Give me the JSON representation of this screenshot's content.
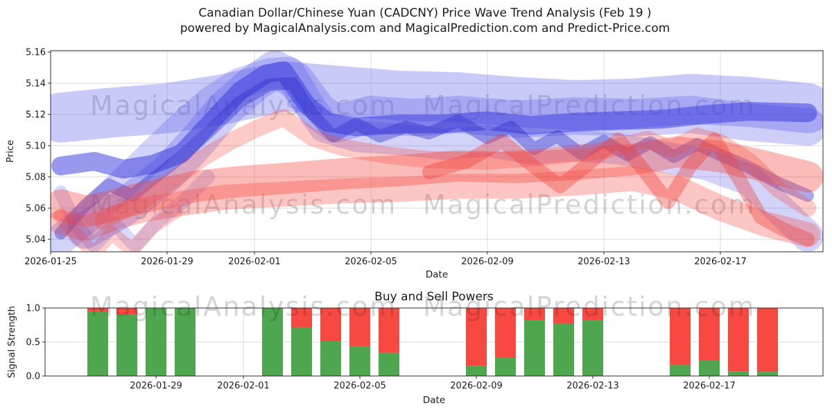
{
  "title": {
    "line1": "Canadian Dollar/Chinese Yuan (CADCNY) Price Wave Trend Analysis (Feb 19 )",
    "line2": "powered by MagicalAnalysis.com and MagicalPrediction.com and Predict-Price.com"
  },
  "watermarks": {
    "left_text": "MagicalAnalysis.com",
    "right_text": "MagicalPrediction.com",
    "color": "#8a8a8a",
    "opacity": 0.18
  },
  "colors": {
    "grid": "#d9d9d9",
    "spine": "#2b2b2b",
    "tick_text": "#262626",
    "buy_green": "#4ea64e",
    "sell_red": "#f74841",
    "wave_blue": "#5050e8",
    "wave_blue_dark": "#3434d0",
    "wave_red": "#f5433a"
  },
  "chart_data": [
    {
      "type": "area",
      "title": "",
      "xlabel": "Date",
      "ylabel": "Price",
      "ylim": [
        5.032,
        5.161
      ],
      "yticks": [
        "5.04",
        "5.06",
        "5.08",
        "5.10",
        "5.12",
        "5.14",
        "5.16"
      ],
      "xticks": [
        {
          "label": "2026-01-25",
          "day": 0
        },
        {
          "label": "2026-01-29",
          "day": 4
        },
        {
          "label": "2026-02-01",
          "day": 7
        },
        {
          "label": "2026-02-05",
          "day": 11
        },
        {
          "label": "2026-02-09",
          "day": 15
        },
        {
          "label": "2026-02-13",
          "day": 19
        },
        {
          "label": "2026-02-17",
          "day": 23
        }
      ],
      "grid": true,
      "legend": "none",
      "note": "overlapping translucent trend bands; points are [day_index_from_2026-01-25, price], width is band thickness in price units",
      "bands": [
        {
          "name": "blue-wide-upper",
          "color": "#5050e8",
          "opacity": 0.3,
          "width": 0.032,
          "points": [
            [
              0.35,
              5.118
            ],
            [
              2,
              5.121
            ],
            [
              4,
              5.124
            ],
            [
              6,
              5.13
            ],
            [
              8,
              5.138
            ],
            [
              10,
              5.135
            ],
            [
              12,
              5.132
            ],
            [
              14,
              5.131
            ],
            [
              16,
              5.128
            ],
            [
              18,
              5.126
            ],
            [
              20,
              5.127
            ],
            [
              22,
              5.13
            ],
            [
              24,
              5.128
            ],
            [
              26,
              5.124
            ]
          ]
        },
        {
          "name": "blue-peak-band",
          "color": "#5050e8",
          "opacity": 0.28,
          "width": 0.024,
          "points": [
            [
              1.2,
              5.046
            ],
            [
              2.5,
              5.06
            ],
            [
              4,
              5.082
            ],
            [
              5,
              5.102
            ],
            [
              6,
              5.124
            ],
            [
              7,
              5.14
            ],
            [
              7.7,
              5.149
            ],
            [
              8.4,
              5.142
            ],
            [
              9.2,
              5.122
            ],
            [
              9.8,
              5.114
            ],
            [
              11,
              5.12
            ],
            [
              12.5,
              5.118
            ],
            [
              14,
              5.12
            ],
            [
              16,
              5.117
            ],
            [
              18,
              5.119
            ],
            [
              20,
              5.118
            ],
            [
              22,
              5.12
            ],
            [
              24,
              5.115
            ],
            [
              26,
              5.112
            ]
          ]
        },
        {
          "name": "blue-early-peak-band",
          "color": "#5050e8",
          "opacity": 0.25,
          "width": 0.02,
          "points": [
            [
              0.35,
              5.04
            ],
            [
              1.5,
              5.058
            ],
            [
              3,
              5.085
            ],
            [
              4.5,
              5.112
            ],
            [
              5.5,
              5.128
            ],
            [
              6.5,
              5.14
            ],
            [
              7.5,
              5.146
            ],
            [
              8.2,
              5.147
            ],
            [
              8.8,
              5.128
            ],
            [
              9.4,
              5.112
            ],
            [
              10.5,
              5.106
            ],
            [
              12,
              5.104
            ],
            [
              13.5,
              5.101
            ],
            [
              15,
              5.103
            ],
            [
              16.5,
              5.098
            ],
            [
              18,
              5.1
            ],
            [
              19.5,
              5.098
            ],
            [
              21,
              5.093
            ],
            [
              22.5,
              5.088
            ],
            [
              24,
              5.078
            ],
            [
              25,
              5.06
            ],
            [
              26,
              5.042
            ]
          ]
        },
        {
          "name": "blue-ribbon",
          "color": "#3939dd",
          "opacity": 0.52,
          "width": 0.012,
          "points": [
            [
              0.35,
              5.087
            ],
            [
              1.5,
              5.09
            ],
            [
              2.5,
              5.085
            ],
            [
              3.5,
              5.088
            ],
            [
              4.5,
              5.095
            ],
            [
              5.5,
              5.115
            ],
            [
              6.5,
              5.135
            ],
            [
              7.4,
              5.146
            ],
            [
              8,
              5.148
            ],
            [
              8.8,
              5.126
            ],
            [
              9.5,
              5.115
            ],
            [
              10.5,
              5.112
            ],
            [
              12,
              5.114
            ],
            [
              13.5,
              5.114
            ],
            [
              15,
              5.116
            ],
            [
              16.5,
              5.113
            ],
            [
              18,
              5.115
            ],
            [
              19.5,
              5.116
            ],
            [
              21,
              5.117
            ],
            [
              22.5,
              5.12
            ],
            [
              24,
              5.122
            ],
            [
              26,
              5.121
            ]
          ]
        },
        {
          "name": "blue-zigzag",
          "color": "#2e2ecc",
          "opacity": 0.4,
          "width": 0.008,
          "points": [
            [
              0.35,
              5.044
            ],
            [
              1.2,
              5.062
            ],
            [
              2,
              5.075
            ],
            [
              2.8,
              5.068
            ],
            [
              3.6,
              5.08
            ],
            [
              4.5,
              5.093
            ],
            [
              5.5,
              5.11
            ],
            [
              6.5,
              5.128
            ],
            [
              7.5,
              5.139
            ],
            [
              8.3,
              5.14
            ],
            [
              9,
              5.12
            ],
            [
              9.7,
              5.106
            ],
            [
              10.5,
              5.114
            ],
            [
              11.3,
              5.106
            ],
            [
              12.2,
              5.112
            ],
            [
              13,
              5.108
            ],
            [
              14,
              5.116
            ],
            [
              15,
              5.105
            ],
            [
              15.8,
              5.112
            ],
            [
              16.6,
              5.098
            ],
            [
              17.4,
              5.106
            ],
            [
              18.2,
              5.095
            ],
            [
              19,
              5.103
            ],
            [
              19.8,
              5.094
            ],
            [
              20.6,
              5.102
            ],
            [
              21.4,
              5.093
            ],
            [
              22.2,
              5.101
            ],
            [
              23,
              5.094
            ],
            [
              24,
              5.086
            ],
            [
              25,
              5.076
            ],
            [
              26,
              5.068
            ]
          ]
        },
        {
          "name": "blue-low-left-zigzag",
          "color": "#5050e8",
          "opacity": 0.22,
          "width": 0.009,
          "points": [
            [
              0.35,
              5.07
            ],
            [
              0.9,
              5.048
            ],
            [
              1.5,
              5.036
            ],
            [
              2.2,
              5.05
            ],
            [
              2.9,
              5.036
            ],
            [
              3.7,
              5.052
            ],
            [
              4.6,
              5.065
            ],
            [
              5.4,
              5.08
            ]
          ]
        },
        {
          "name": "red-wide-band",
          "color": "#f5433a",
          "opacity": 0.36,
          "width": 0.02,
          "points": [
            [
              0.35,
              5.062
            ],
            [
              1.2,
              5.058
            ],
            [
              2,
              5.061
            ],
            [
              3,
              5.066
            ],
            [
              4,
              5.07
            ],
            [
              5,
              5.074
            ],
            [
              6.5,
              5.077
            ],
            [
              8,
              5.079
            ],
            [
              10,
              5.082
            ],
            [
              12,
              5.084
            ],
            [
              14,
              5.087
            ],
            [
              16,
              5.086
            ],
            [
              18,
              5.088
            ],
            [
              20,
              5.091
            ],
            [
              21.5,
              5.096
            ],
            [
              23,
              5.093
            ],
            [
              24.5,
              5.087
            ],
            [
              26,
              5.08
            ]
          ]
        },
        {
          "name": "red-lower-band",
          "color": "#f5433a",
          "opacity": 0.3,
          "width": 0.016,
          "points": [
            [
              0.35,
              5.051
            ],
            [
              1.2,
              5.047
            ],
            [
              2.2,
              5.054
            ],
            [
              3.2,
              5.059
            ],
            [
              4.5,
              5.063
            ],
            [
              6,
              5.067
            ],
            [
              8,
              5.069
            ],
            [
              10,
              5.071
            ],
            [
              12,
              5.072
            ],
            [
              14,
              5.074
            ],
            [
              16,
              5.074
            ],
            [
              18,
              5.076
            ],
            [
              20,
              5.079
            ],
            [
              21.5,
              5.073
            ],
            [
              23,
              5.06
            ],
            [
              24.5,
              5.05
            ],
            [
              26,
              5.043
            ]
          ]
        },
        {
          "name": "red-upper-thin-band",
          "color": "#f5433a",
          "opacity": 0.28,
          "width": 0.011,
          "points": [
            [
              1.8,
              5.052
            ],
            [
              3,
              5.063
            ],
            [
              4.2,
              5.078
            ],
            [
              5.2,
              5.092
            ],
            [
              6.2,
              5.103
            ],
            [
              7.2,
              5.112
            ],
            [
              8,
              5.118
            ],
            [
              9,
              5.105
            ],
            [
              10,
              5.099
            ],
            [
              11.5,
              5.094
            ],
            [
              13,
              5.091
            ],
            [
              15,
              5.09
            ],
            [
              17,
              5.093
            ],
            [
              19,
              5.097
            ],
            [
              20.5,
              5.104
            ],
            [
              21.3,
              5.098
            ],
            [
              22.2,
              5.106
            ],
            [
              23,
              5.102
            ],
            [
              24,
              5.09
            ],
            [
              25,
              5.072
            ],
            [
              26,
              5.06
            ]
          ]
        },
        {
          "name": "red-right-zigzag",
          "color": "#ef3d35",
          "opacity": 0.38,
          "width": 0.009,
          "points": [
            [
              13,
              5.083
            ],
            [
              14.3,
              5.09
            ],
            [
              15.5,
              5.103
            ],
            [
              16.5,
              5.088
            ],
            [
              17.5,
              5.074
            ],
            [
              18.5,
              5.089
            ],
            [
              19.5,
              5.104
            ],
            [
              20.3,
              5.086
            ],
            [
              21.2,
              5.064
            ],
            [
              22,
              5.088
            ],
            [
              22.8,
              5.104
            ],
            [
              23.6,
              5.08
            ],
            [
              24.4,
              5.054
            ],
            [
              25.2,
              5.046
            ],
            [
              26,
              5.04
            ]
          ]
        },
        {
          "name": "red-left-zigzag",
          "color": "#f5433a",
          "opacity": 0.26,
          "width": 0.009,
          "points": [
            [
              0.35,
              5.055
            ],
            [
              0.9,
              5.042
            ],
            [
              1.5,
              5.031
            ],
            [
              2.1,
              5.044
            ],
            [
              2.8,
              5.033
            ],
            [
              3.5,
              5.048
            ],
            [
              4.3,
              5.058
            ]
          ]
        }
      ]
    },
    {
      "type": "bar",
      "title": "Buy and Sell Powers",
      "xlabel": "Date",
      "ylabel": "Signal Strength",
      "ylim": [
        0,
        1
      ],
      "yticks": [
        "0.0",
        "0.5",
        "1.0"
      ],
      "xticks": [
        {
          "label": "2026-01-29",
          "day": 4
        },
        {
          "label": "2026-02-01",
          "day": 7
        },
        {
          "label": "2026-02-05",
          "day": 11
        },
        {
          "label": "2026-02-09",
          "day": 15
        },
        {
          "label": "2026-02-13",
          "day": 19
        },
        {
          "label": "2026-02-17",
          "day": 23
        }
      ],
      "grid": true,
      "legend": "none",
      "series": [
        {
          "name": "buy-power",
          "color": "#4ea64e"
        },
        {
          "name": "sell-power",
          "color": "#f74841"
        }
      ],
      "bars": [
        {
          "date": "2026-01-27",
          "day": 2,
          "buy": 0.95,
          "sell": 0.05
        },
        {
          "date": "2026-01-28",
          "day": 3,
          "buy": 0.9,
          "sell": 0.1
        },
        {
          "date": "2026-01-29",
          "day": 4,
          "buy": 1.0,
          "sell": 0.0
        },
        {
          "date": "2026-01-30",
          "day": 5,
          "buy": 1.0,
          "sell": 0.0
        },
        {
          "date": "2026-02-02",
          "day": 8,
          "buy": 1.0,
          "sell": 0.0
        },
        {
          "date": "2026-02-03",
          "day": 9,
          "buy": 0.71,
          "sell": 0.29
        },
        {
          "date": "2026-02-04",
          "day": 10,
          "buy": 0.51,
          "sell": 0.49
        },
        {
          "date": "2026-02-05",
          "day": 11,
          "buy": 0.43,
          "sell": 0.57
        },
        {
          "date": "2026-02-06",
          "day": 12,
          "buy": 0.34,
          "sell": 0.66
        },
        {
          "date": "2026-02-09",
          "day": 15,
          "buy": 0.15,
          "sell": 0.85
        },
        {
          "date": "2026-02-10",
          "day": 16,
          "buy": 0.27,
          "sell": 0.73
        },
        {
          "date": "2026-02-11",
          "day": 17,
          "buy": 0.82,
          "sell": 0.18
        },
        {
          "date": "2026-02-12",
          "day": 18,
          "buy": 0.77,
          "sell": 0.23
        },
        {
          "date": "2026-02-13",
          "day": 19,
          "buy": 0.82,
          "sell": 0.18
        },
        {
          "date": "2026-02-16",
          "day": 22,
          "buy": 0.16,
          "sell": 0.84
        },
        {
          "date": "2026-02-17",
          "day": 23,
          "buy": 0.23,
          "sell": 0.77
        },
        {
          "date": "2026-02-18",
          "day": 24,
          "buy": 0.07,
          "sell": 0.93
        },
        {
          "date": "2026-02-19",
          "day": 25,
          "buy": 0.06,
          "sell": 0.94
        }
      ]
    }
  ]
}
